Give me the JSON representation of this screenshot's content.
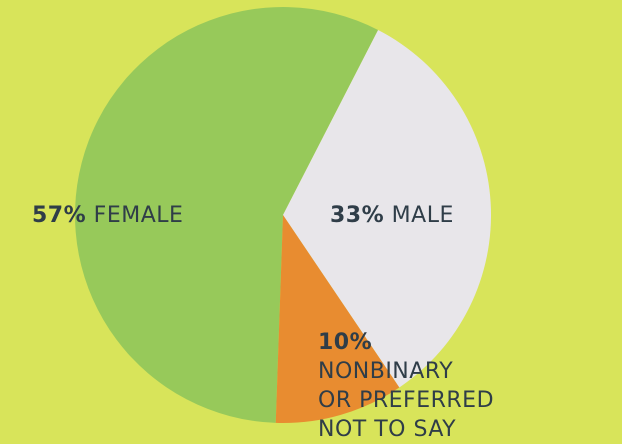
{
  "chart_data": {
    "type": "pie",
    "categories": [
      "FEMALE",
      "MALE",
      "NONBINARY\nOR PREFERRED\nNOT TO SAY"
    ],
    "values": [
      57,
      33,
      10
    ],
    "value_labels": [
      "57%",
      "33%",
      "10%"
    ],
    "colors": [
      "#97c95a",
      "#e8e6ea",
      "#e88c30"
    ]
  }
}
